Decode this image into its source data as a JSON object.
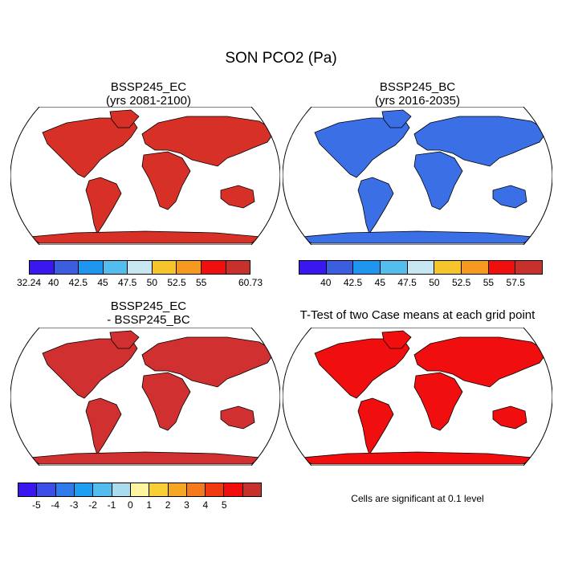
{
  "title": "SON PCO2 (Pa)",
  "panels": [
    {
      "title_line1": "BSSP245_EC",
      "title_line2": "(yrs 2081-2100)",
      "ocean_color": "#ffffff",
      "land_color": "#d73027",
      "colorbar": {
        "colors": [
          "#3a17f0",
          "#3b5ee0",
          "#1e96f0",
          "#55bcee",
          "#c7e6f2",
          "#f5c52b",
          "#f59a1f",
          "#f00e0e",
          "#c8302c"
        ],
        "labels": [
          "32.24",
          "40",
          "42.5",
          "45",
          "47.5",
          "50",
          "52.5",
          "55",
          "60.73"
        ],
        "label_positions": [
          0,
          1,
          2,
          3,
          4,
          5,
          6,
          7,
          9
        ]
      }
    },
    {
      "title_line1": "BSSP245_BC",
      "title_line2": "(yrs 2016-2035)",
      "ocean_color": "#ffffff",
      "land_color": "#3b6fe6",
      "colorbar": {
        "colors": [
          "#3a17f0",
          "#3b5ee0",
          "#1e96f0",
          "#55bcee",
          "#c7e6f2",
          "#f5c52b",
          "#f59a1f",
          "#f00e0e",
          "#c8302c"
        ],
        "labels": [
          "40",
          "42.5",
          "45",
          "47.5",
          "50",
          "52.5",
          "55",
          "57.5"
        ],
        "label_positions": [
          1,
          2,
          3,
          4,
          5,
          6,
          7,
          8
        ]
      }
    },
    {
      "title_line1": "BSSP245_EC",
      "title_line2": "- BSSP245_BC",
      "ocean_color": "#ffffff",
      "land_color": "#d13030",
      "colorbar": {
        "colors": [
          "#3a17f0",
          "#3b4fe8",
          "#2f7bea",
          "#1e9ef0",
          "#55bcee",
          "#aadcf0",
          "#fff5a0",
          "#f8cf35",
          "#f5a624",
          "#f57a1c",
          "#f03a10",
          "#f00e0e",
          "#c8302c"
        ],
        "labels": [
          "-5",
          "-4",
          "-3",
          "-2",
          "-1",
          "0",
          "1",
          "2",
          "3",
          "4",
          "5"
        ],
        "label_positions": [
          1,
          2,
          3,
          4,
          5,
          6,
          7,
          8,
          9,
          10,
          11
        ]
      }
    },
    {
      "title_line1": "T-Test of two Case means at each grid point",
      "title_line2": "",
      "ocean_color": "#ffffff",
      "land_color": "#f00e0e",
      "note": "Cells are significant at 0.1 level"
    }
  ]
}
